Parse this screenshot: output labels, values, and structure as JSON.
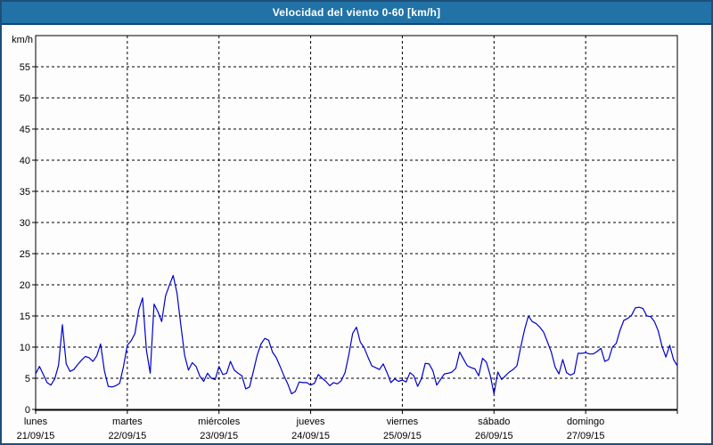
{
  "window": {
    "title": "Velocidad del viento 0-60 [km/h]"
  },
  "colors": {
    "window_border": "#1e4e79",
    "titlebar_bg": "#2173a7",
    "titlebar_border": "#0e4677",
    "titlebar_text": "#ffffff",
    "plot_bg": "#fdfdfd",
    "frame": "#000000",
    "grid": "#000000",
    "tick_text": "#000000",
    "line": "#0000cc"
  },
  "chart_data": {
    "type": "line",
    "title": "Velocidad del viento 0-60 [km/h]",
    "unit_label": "km/h",
    "ylabel": "km/h",
    "ylim": [
      0,
      60
    ],
    "ytick_step": 5,
    "ytick_label_max": 55,
    "grid": "dashed",
    "legend_position": "none",
    "x_days": [
      {
        "name": "lunes",
        "date": "21/09/15"
      },
      {
        "name": "martes",
        "date": "22/09/15"
      },
      {
        "name": "miércoles",
        "date": "23/09/15"
      },
      {
        "name": "jueves",
        "date": "24/09/15"
      },
      {
        "name": "viernes",
        "date": "25/09/15"
      },
      {
        "name": "sábado",
        "date": "26/09/15"
      },
      {
        "name": "domingo",
        "date": "27/09/15"
      }
    ],
    "points_per_day": 24,
    "series": [
      {
        "name": "Velocidad del viento [km/h]",
        "values": [
          5.7,
          6.9,
          5.6,
          4.3,
          3.9,
          4.9,
          7.1,
          13.6,
          7.3,
          6.1,
          6.4,
          7.2,
          7.9,
          8.5,
          8.3,
          7.7,
          8.6,
          10.5,
          6.2,
          3.7,
          3.6,
          3.8,
          4.2,
          6.9,
          10.3,
          11.0,
          12.2,
          16.0,
          17.9,
          9.5,
          5.8,
          16.9,
          15.7,
          14.1,
          18.2,
          19.9,
          21.5,
          18.7,
          13.6,
          8.7,
          6.3,
          7.5,
          6.9,
          5.3,
          4.5,
          5.8,
          5.0,
          4.8,
          6.9,
          5.6,
          5.8,
          7.7,
          6.3,
          5.8,
          5.4,
          3.3,
          3.6,
          6.1,
          8.7,
          10.5,
          11.4,
          11.1,
          9.2,
          8.3,
          6.9,
          5.4,
          4.1,
          2.5,
          2.9,
          4.4,
          4.3,
          4.3,
          3.9,
          4.2,
          5.6,
          5.0,
          4.5,
          3.8,
          4.3,
          4.1,
          4.6,
          5.9,
          8.8,
          12.2,
          13.2,
          10.8,
          9.9,
          8.4,
          7.0,
          6.7,
          6.4,
          7.3,
          5.9,
          4.3,
          4.9,
          4.5,
          4.7,
          4.4,
          5.9,
          5.4,
          3.7,
          4.9,
          7.4,
          7.3,
          6.2,
          3.9,
          4.8,
          5.7,
          5.8,
          6.0,
          6.6,
          9.2,
          8.1,
          7.0,
          6.7,
          6.5,
          5.4,
          8.2,
          7.6,
          5.5,
          2.5,
          6.0,
          4.8,
          5.4,
          6.0,
          6.4,
          7.0,
          10.0,
          12.8,
          15.0,
          14.1,
          13.8,
          13.2,
          12.4,
          10.8,
          9.2,
          6.8,
          5.7,
          8.0,
          5.9,
          5.5,
          5.8,
          9.0,
          9.0,
          9.1,
          8.9,
          8.9,
          9.3,
          9.8,
          7.7,
          8.0,
          10.0,
          10.6,
          12.7,
          14.3,
          14.6,
          15.1,
          16.3,
          16.4,
          16.2,
          15.0,
          14.9,
          14.1,
          12.6,
          10.1,
          8.4,
          10.3,
          8.0,
          7.0
        ]
      }
    ]
  }
}
